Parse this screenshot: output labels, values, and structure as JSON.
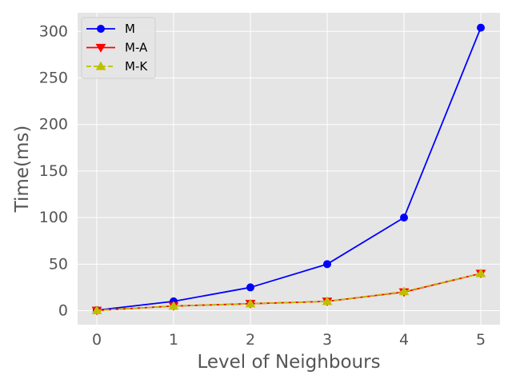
{
  "chart_data": {
    "type": "line",
    "title": "",
    "xlabel": "Level of Neighbours",
    "ylabel": "Time(ms)",
    "x": [
      0,
      1,
      2,
      3,
      4,
      5
    ],
    "xticks": [
      "0",
      "1",
      "2",
      "3",
      "4",
      "5"
    ],
    "yticks": [
      "0",
      "50",
      "100",
      "150",
      "200",
      "250",
      "300"
    ],
    "xlim": [
      -0.25,
      5.25
    ],
    "ylim": [
      -15,
      320
    ],
    "grid": true,
    "legend_position": "upper-left",
    "series": [
      {
        "name": "M",
        "values": [
          0.5,
          10,
          25,
          50,
          100,
          304
        ],
        "color": "#0000ff",
        "marker": "circle",
        "line_style": "solid"
      },
      {
        "name": "M-A",
        "values": [
          0.3,
          5,
          7.5,
          10,
          20,
          40
        ],
        "color": "#ff0000",
        "marker": "triangle-down",
        "line_style": "solid"
      },
      {
        "name": "M-K",
        "values": [
          0.3,
          5,
          7.5,
          10,
          20.5,
          40
        ],
        "color": "#bfbf00",
        "marker": "triangle-up",
        "line_style": "dashed"
      }
    ]
  }
}
